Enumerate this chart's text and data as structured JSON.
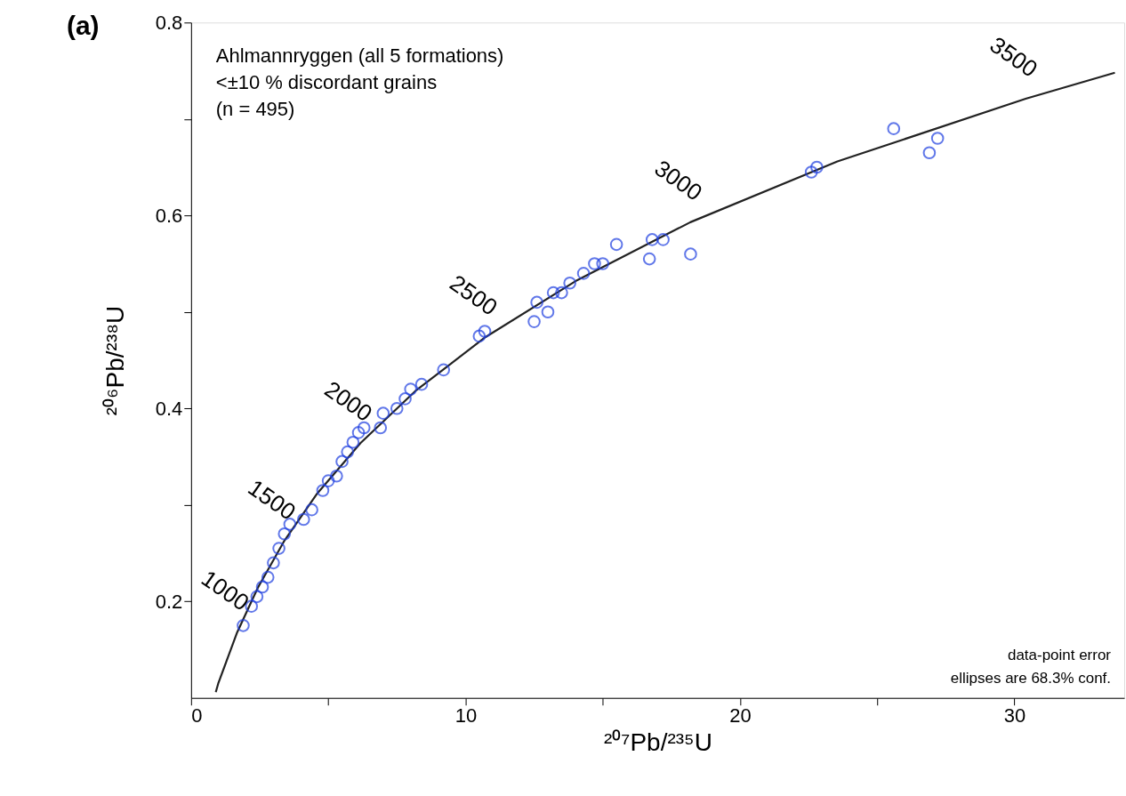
{
  "chart_data": {
    "type": "scatter",
    "title": "(a)",
    "subtitle": [
      "Ahlmannryggen (all 5 formations)",
      "<±10 % discordant grains",
      "(n = 495)"
    ],
    "xlabel": "²⁰⁷Pb/²³⁵U",
    "ylabel": "²⁰⁶Pb/²³⁸U",
    "xlim": [
      0,
      34
    ],
    "ylim": [
      0.1,
      0.8
    ],
    "xticks": [
      0,
      {
        "value": 5,
        "label": null
      },
      10,
      {
        "value": 15,
        "label": null
      },
      20,
      {
        "value": 25,
        "label": null
      },
      30
    ],
    "yticks": [
      0.2,
      {
        "value": 0.3,
        "label": null
      },
      0.4,
      {
        "value": 0.5,
        "label": null
      },
      0.6,
      {
        "value": 0.7,
        "label": null
      },
      0.8
    ],
    "grid": false,
    "marker": "circle",
    "series": [
      {
        "type": "line",
        "color": "#222222",
        "marker": "none",
        "line_style": "solid",
        "x": [
          0.9,
          0.99,
          1.68,
          2.43,
          3.38,
          4.6,
          6.17,
          8.17,
          10.73,
          14.01,
          18.19,
          23.55,
          30.41,
          33.66
        ],
        "values": [
          0.106,
          0.115,
          0.168,
          0.214,
          0.262,
          0.312,
          0.364,
          0.418,
          0.474,
          0.532,
          0.593,
          0.656,
          0.721,
          0.748
        ]
      },
      {
        "color": "#1f3fe0",
        "x": [
          1.9,
          2.2,
          2.4,
          2.6,
          2.8,
          3.0,
          3.2,
          3.4,
          3.6,
          4.1,
          4.4,
          4.8,
          5.0,
          5.3,
          5.5,
          5.7,
          5.9,
          6.1,
          6.3,
          6.9,
          7.0,
          7.5,
          7.8,
          8.0,
          8.4,
          9.2,
          10.5,
          10.7,
          12.5,
          12.6,
          13.0,
          13.2,
          13.5,
          13.8,
          14.3,
          14.7,
          15.0,
          15.5,
          16.7,
          16.8,
          17.2,
          18.2,
          22.6,
          22.8,
          25.6,
          26.9,
          27.2
        ],
        "values": [
          0.175,
          0.195,
          0.205,
          0.215,
          0.225,
          0.24,
          0.255,
          0.27,
          0.28,
          0.285,
          0.295,
          0.315,
          0.325,
          0.33,
          0.345,
          0.355,
          0.365,
          0.375,
          0.38,
          0.38,
          0.395,
          0.4,
          0.41,
          0.42,
          0.425,
          0.44,
          0.475,
          0.48,
          0.49,
          0.51,
          0.5,
          0.52,
          0.52,
          0.53,
          0.54,
          0.55,
          0.55,
          0.57,
          0.555,
          0.575,
          0.575,
          0.56,
          0.645,
          0.65,
          0.69,
          0.665,
          0.68
        ]
      }
    ],
    "annotations": [
      {
        "text": "1000",
        "x": 1.68,
        "y": 0.168
      },
      {
        "text": "1500",
        "x": 3.38,
        "y": 0.262
      },
      {
        "text": "2000",
        "x": 6.17,
        "y": 0.364
      },
      {
        "text": "2500",
        "x": 10.73,
        "y": 0.474
      },
      {
        "text": "3000",
        "x": 18.19,
        "y": 0.593
      },
      {
        "text": "3500",
        "x": 30.41,
        "y": 0.721
      },
      "data-point error",
      "ellipses are 68.3% conf."
    ]
  }
}
